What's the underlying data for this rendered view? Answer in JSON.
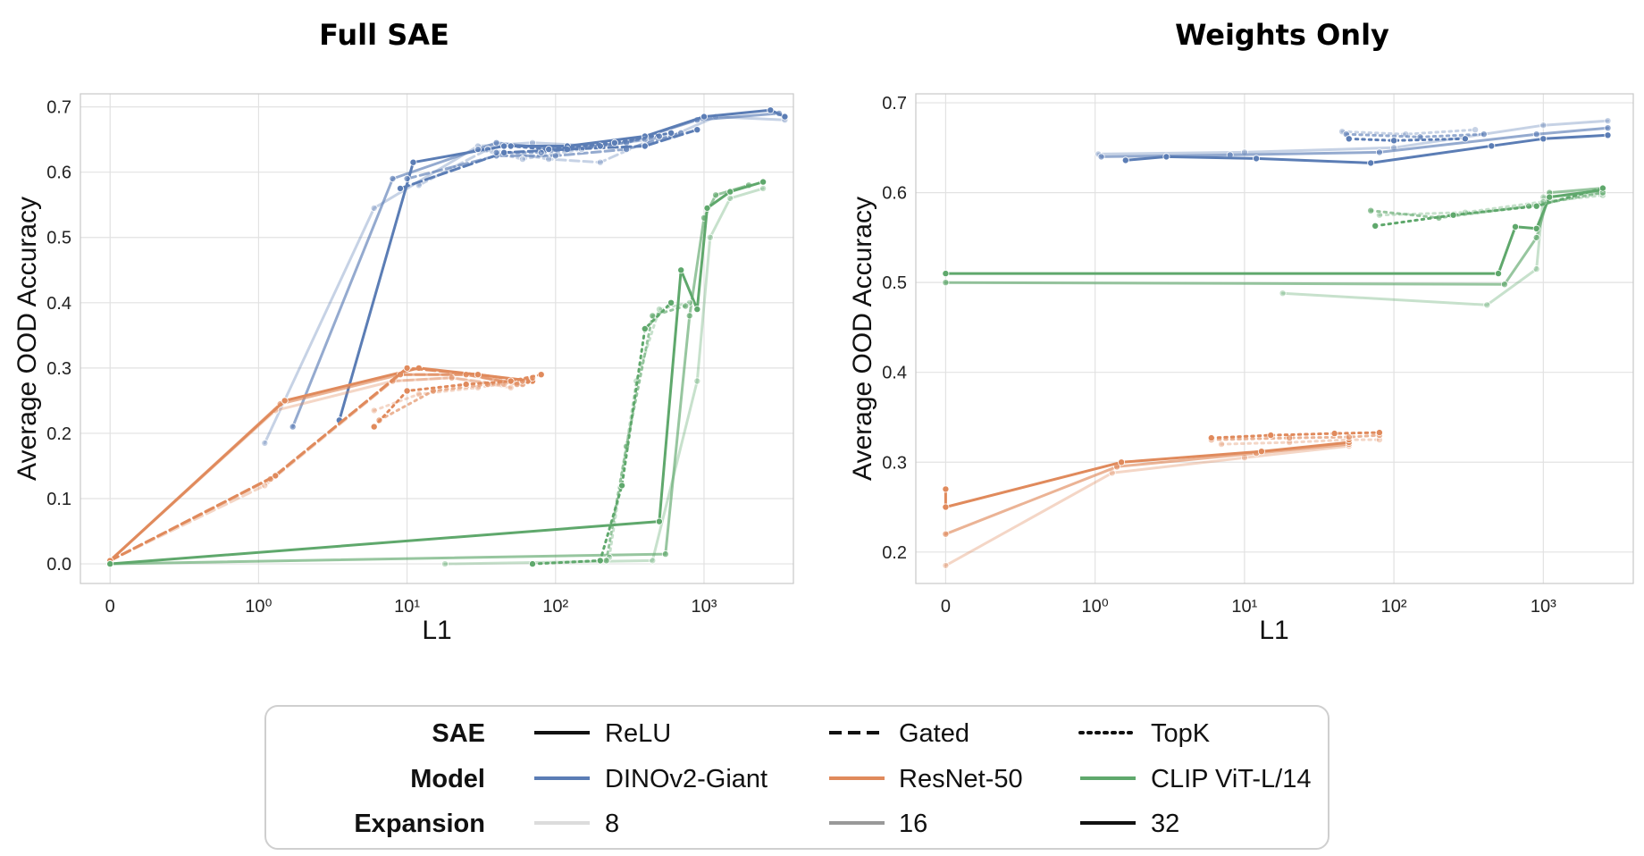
{
  "chart_data": [
    {
      "type": "line",
      "title": "Full SAE",
      "xlabel": "L1",
      "ylabel": "Average OOD Accuracy",
      "x_scale": "symlog",
      "xlim": [
        -0.2,
        4000
      ],
      "ylim": [
        -0.03,
        0.72
      ],
      "x_ticks": [
        0,
        1,
        10,
        100,
        1000
      ],
      "y_ticks": [
        0.0,
        0.1,
        0.2,
        0.3,
        0.4,
        0.5,
        0.6,
        0.7
      ],
      "y_tick_labels": [
        "0.0",
        "0.1",
        "0.2",
        "0.3",
        "0.4",
        "0.5",
        "0.6",
        "0.7"
      ],
      "grid": true,
      "series": [
        {
          "sae": "ReLU",
          "model": "DINOv2-Giant",
          "expansion": 8,
          "x": [
            1.1,
            6,
            30,
            70,
            200,
            600,
            1200,
            3500
          ],
          "y": [
            0.185,
            0.545,
            0.64,
            0.645,
            0.64,
            0.655,
            0.685,
            0.68
          ]
        },
        {
          "sae": "ReLU",
          "model": "DINOv2-Giant",
          "expansion": 16,
          "x": [
            1.7,
            8,
            40,
            100,
            300,
            900,
            3200
          ],
          "y": [
            0.21,
            0.59,
            0.645,
            0.635,
            0.645,
            0.68,
            0.69
          ]
        },
        {
          "sae": "ReLU",
          "model": "DINOv2-Giant",
          "expansion": 32,
          "x": [
            3.5,
            11,
            45,
            120,
            400,
            1000,
            2800,
            3500
          ],
          "y": [
            0.22,
            0.615,
            0.64,
            0.64,
            0.655,
            0.685,
            0.695,
            0.685
          ]
        },
        {
          "sae": "Gated",
          "model": "DINOv2-Giant",
          "expansion": 8,
          "x": [
            12,
            35,
            90,
            200,
            500
          ],
          "y": [
            0.58,
            0.635,
            0.62,
            0.615,
            0.655
          ]
        },
        {
          "sae": "Gated",
          "model": "DINOv2-Giant",
          "expansion": 16,
          "x": [
            10,
            40,
            100,
            300,
            700
          ],
          "y": [
            0.59,
            0.625,
            0.625,
            0.635,
            0.66
          ]
        },
        {
          "sae": "Gated",
          "model": "DINOv2-Giant",
          "expansion": 32,
          "x": [
            9,
            45,
            120,
            400,
            900
          ],
          "y": [
            0.575,
            0.63,
            0.635,
            0.64,
            0.665
          ]
        },
        {
          "sae": "TopK",
          "model": "DINOv2-Giant",
          "expansion": 8,
          "x": [
            30,
            60,
            150,
            400
          ],
          "y": [
            0.635,
            0.62,
            0.635,
            0.65
          ]
        },
        {
          "sae": "TopK",
          "model": "DINOv2-Giant",
          "expansion": 16,
          "x": [
            40,
            80,
            200,
            500
          ],
          "y": [
            0.63,
            0.63,
            0.64,
            0.655
          ]
        },
        {
          "sae": "TopK",
          "model": "DINOv2-Giant",
          "expansion": 32,
          "x": [
            50,
            90,
            250,
            600
          ],
          "y": [
            0.64,
            0.635,
            0.645,
            0.66
          ]
        },
        {
          "sae": "ReLU",
          "model": "ResNet-50",
          "expansion": 8,
          "x": [
            0,
            1.3,
            8,
            20,
            50
          ],
          "y": [
            0.005,
            0.235,
            0.28,
            0.285,
            0.27
          ]
        },
        {
          "sae": "ReLU",
          "model": "ResNet-50",
          "expansion": 16,
          "x": [
            0,
            1.4,
            9,
            25,
            60
          ],
          "y": [
            0.005,
            0.245,
            0.29,
            0.29,
            0.275
          ]
        },
        {
          "sae": "ReLU",
          "model": "ResNet-50",
          "expansion": 32,
          "x": [
            0,
            1.5,
            12,
            30,
            70
          ],
          "y": [
            0.005,
            0.25,
            0.3,
            0.29,
            0.28
          ]
        },
        {
          "sae": "Gated",
          "model": "ResNet-50",
          "expansion": 8,
          "x": [
            0,
            1.1,
            8,
            20,
            45
          ],
          "y": [
            0.005,
            0.12,
            0.28,
            0.285,
            0.275
          ]
        },
        {
          "sae": "Gated",
          "model": "ResNet-50",
          "expansion": 16,
          "x": [
            0,
            1.2,
            9,
            25,
            55
          ],
          "y": [
            0.005,
            0.13,
            0.29,
            0.29,
            0.275
          ]
        },
        {
          "sae": "Gated",
          "model": "ResNet-50",
          "expansion": 32,
          "x": [
            0,
            1.3,
            10,
            30,
            65
          ],
          "y": [
            0.005,
            0.135,
            0.3,
            0.29,
            0.28
          ]
        },
        {
          "sae": "TopK",
          "model": "ResNet-50",
          "expansion": 8,
          "x": [
            6,
            12,
            30,
            60
          ],
          "y": [
            0.235,
            0.26,
            0.27,
            0.28
          ]
        },
        {
          "sae": "TopK",
          "model": "ResNet-50",
          "expansion": 16,
          "x": [
            6.5,
            15,
            35,
            70
          ],
          "y": [
            0.22,
            0.265,
            0.275,
            0.285
          ]
        },
        {
          "sae": "TopK",
          "model": "ResNet-50",
          "expansion": 32,
          "x": [
            6,
            10,
            25,
            50,
            80
          ],
          "y": [
            0.21,
            0.265,
            0.275,
            0.28,
            0.29
          ]
        },
        {
          "sae": "ReLU",
          "model": "CLIP ViT-L/14",
          "expansion": 8,
          "x": [
            18,
            450,
            900,
            1100,
            1500,
            2500
          ],
          "y": [
            0.0,
            0.005,
            0.28,
            0.5,
            0.56,
            0.575
          ]
        },
        {
          "sae": "ReLU",
          "model": "CLIP ViT-L/14",
          "expansion": 16,
          "x": [
            0,
            550,
            800,
            1000,
            1200,
            2000
          ],
          "y": [
            0.0,
            0.015,
            0.38,
            0.53,
            0.565,
            0.58
          ]
        },
        {
          "sae": "ReLU",
          "model": "CLIP ViT-L/14",
          "expansion": 32,
          "x": [
            0,
            500,
            700,
            900,
            1050,
            1500,
            2500
          ],
          "y": [
            0.0,
            0.065,
            0.45,
            0.39,
            0.545,
            0.57,
            0.585
          ]
        },
        {
          "sae": "TopK",
          "model": "CLIP ViT-L/14",
          "expansion": 8,
          "x": [
            230,
            350,
            500,
            800
          ],
          "y": [
            0.01,
            0.28,
            0.39,
            0.4
          ]
        },
        {
          "sae": "TopK",
          "model": "CLIP ViT-L/14",
          "expansion": 16,
          "x": [
            220,
            300,
            450,
            750
          ],
          "y": [
            0.005,
            0.18,
            0.38,
            0.395
          ]
        },
        {
          "sae": "TopK",
          "model": "CLIP ViT-L/14",
          "expansion": 32,
          "x": [
            70,
            200,
            280,
            400,
            600
          ],
          "y": [
            0.0,
            0.005,
            0.12,
            0.36,
            0.4
          ]
        }
      ]
    },
    {
      "type": "line",
      "title": "Weights Only",
      "xlabel": "L1",
      "ylabel": "Average OOD Accuracy",
      "x_scale": "symlog",
      "xlim": [
        -0.2,
        4000
      ],
      "ylim": [
        0.165,
        0.71
      ],
      "x_ticks": [
        0,
        1,
        10,
        100,
        1000
      ],
      "y_ticks": [
        0.2,
        0.3,
        0.4,
        0.5,
        0.6,
        0.7
      ],
      "y_tick_labels": [
        "0.2",
        "0.3",
        "0.4",
        "0.5",
        "0.6",
        "0.7"
      ],
      "grid": true,
      "series": [
        {
          "sae": "ReLU",
          "model": "DINOv2-Giant",
          "expansion": 8,
          "x": [
            1.05,
            10,
            100,
            1000,
            2700
          ],
          "y": [
            0.643,
            0.645,
            0.65,
            0.675,
            0.68
          ]
        },
        {
          "sae": "ReLU",
          "model": "DINOv2-Giant",
          "expansion": 16,
          "x": [
            1.1,
            8,
            80,
            900,
            2700
          ],
          "y": [
            0.64,
            0.642,
            0.645,
            0.665,
            0.672
          ]
        },
        {
          "sae": "ReLU",
          "model": "DINOv2-Giant",
          "expansion": 32,
          "x": [
            1.6,
            3,
            12,
            70,
            450,
            1000,
            2700
          ],
          "y": [
            0.636,
            0.64,
            0.638,
            0.633,
            0.652,
            0.66,
            0.664
          ]
        },
        {
          "sae": "TopK",
          "model": "DINOv2-Giant",
          "expansion": 8,
          "x": [
            45,
            120,
            350
          ],
          "y": [
            0.668,
            0.665,
            0.67
          ]
        },
        {
          "sae": "TopK",
          "model": "DINOv2-Giant",
          "expansion": 16,
          "x": [
            48,
            150,
            400
          ],
          "y": [
            0.665,
            0.662,
            0.665
          ]
        },
        {
          "sae": "TopK",
          "model": "DINOv2-Giant",
          "expansion": 32,
          "x": [
            50,
            100,
            300
          ],
          "y": [
            0.66,
            0.658,
            0.66
          ]
        },
        {
          "sae": "ReLU",
          "model": "ResNet-50",
          "expansion": 8,
          "x": [
            0,
            1.3,
            10,
            50
          ],
          "y": [
            0.185,
            0.288,
            0.305,
            0.318
          ]
        },
        {
          "sae": "ReLU",
          "model": "ResNet-50",
          "expansion": 16,
          "x": [
            0,
            1.4,
            12,
            50
          ],
          "y": [
            0.22,
            0.295,
            0.31,
            0.32
          ]
        },
        {
          "sae": "ReLU",
          "model": "ResNet-50",
          "expansion": 32,
          "x": [
            0,
            0,
            1.5,
            13,
            50
          ],
          "y": [
            0.27,
            0.25,
            0.3,
            0.312,
            0.322
          ]
        },
        {
          "sae": "TopK",
          "model": "ResNet-50",
          "expansion": 8,
          "x": [
            7,
            20,
            50,
            80
          ],
          "y": [
            0.32,
            0.322,
            0.325,
            0.325
          ]
        },
        {
          "sae": "TopK",
          "model": "ResNet-50",
          "expansion": 16,
          "x": [
            6,
            20,
            50,
            80
          ],
          "y": [
            0.325,
            0.327,
            0.328,
            0.33
          ]
        },
        {
          "sae": "TopK",
          "model": "ResNet-50",
          "expansion": 32,
          "x": [
            6,
            15,
            40,
            80
          ],
          "y": [
            0.327,
            0.33,
            0.332,
            0.333
          ]
        },
        {
          "sae": "ReLU",
          "model": "CLIP ViT-L/14",
          "expansion": 8,
          "x": [
            18,
            420,
            900,
            1000,
            2500
          ],
          "y": [
            0.488,
            0.475,
            0.515,
            0.595,
            0.6
          ]
        },
        {
          "sae": "ReLU",
          "model": "CLIP ViT-L/14",
          "expansion": 16,
          "x": [
            0,
            550,
            900,
            1100,
            2500
          ],
          "y": [
            0.5,
            0.498,
            0.55,
            0.6,
            0.605
          ]
        },
        {
          "sae": "ReLU",
          "model": "CLIP ViT-L/14",
          "expansion": 32,
          "x": [
            0,
            500,
            650,
            900,
            1100,
            2500
          ],
          "y": [
            0.51,
            0.51,
            0.562,
            0.56,
            0.595,
            0.603
          ]
        },
        {
          "sae": "TopK",
          "model": "CLIP ViT-L/14",
          "expansion": 8,
          "x": [
            80,
            300,
            1000,
            2500
          ],
          "y": [
            0.575,
            0.578,
            0.59,
            0.597
          ]
        },
        {
          "sae": "TopK",
          "model": "CLIP ViT-L/14",
          "expansion": 16,
          "x": [
            70,
            200,
            800,
            2500
          ],
          "y": [
            0.58,
            0.572,
            0.585,
            0.6
          ]
        },
        {
          "sae": "TopK",
          "model": "CLIP ViT-L/14",
          "expansion": 32,
          "x": [
            75,
            250,
            900,
            2500
          ],
          "y": [
            0.563,
            0.575,
            0.585,
            0.605
          ]
        }
      ]
    }
  ],
  "legend": {
    "placement": "bottom-center",
    "rows": [
      {
        "header": "SAE",
        "entries": [
          {
            "label": "ReLU",
            "style": "solid",
            "color": "#111111"
          },
          {
            "label": "Gated",
            "style": "dashed",
            "color": "#111111"
          },
          {
            "label": "TopK",
            "style": "dotted",
            "color": "#111111"
          }
        ]
      },
      {
        "header": "Model",
        "entries": [
          {
            "label": "DINOv2-Giant",
            "style": "solid",
            "color": "#5b7db5"
          },
          {
            "label": "ResNet-50",
            "style": "solid",
            "color": "#e08a5c"
          },
          {
            "label": "CLIP ViT-L/14",
            "style": "solid",
            "color": "#5fa86c"
          }
        ]
      },
      {
        "header": "Expansion",
        "entries": [
          {
            "label": "8",
            "style": "solid",
            "color": "#dcdcdc"
          },
          {
            "label": "16",
            "style": "solid",
            "color": "#999999"
          },
          {
            "label": "32",
            "style": "solid",
            "color": "#111111"
          }
        ]
      }
    ]
  },
  "colors": {
    "DINOv2-Giant": "#5b7db5",
    "ResNet-50": "#e08a5c",
    "CLIP ViT-L/14": "#5fa86c",
    "grid": "#dddddd",
    "spine": "#cccccc"
  }
}
